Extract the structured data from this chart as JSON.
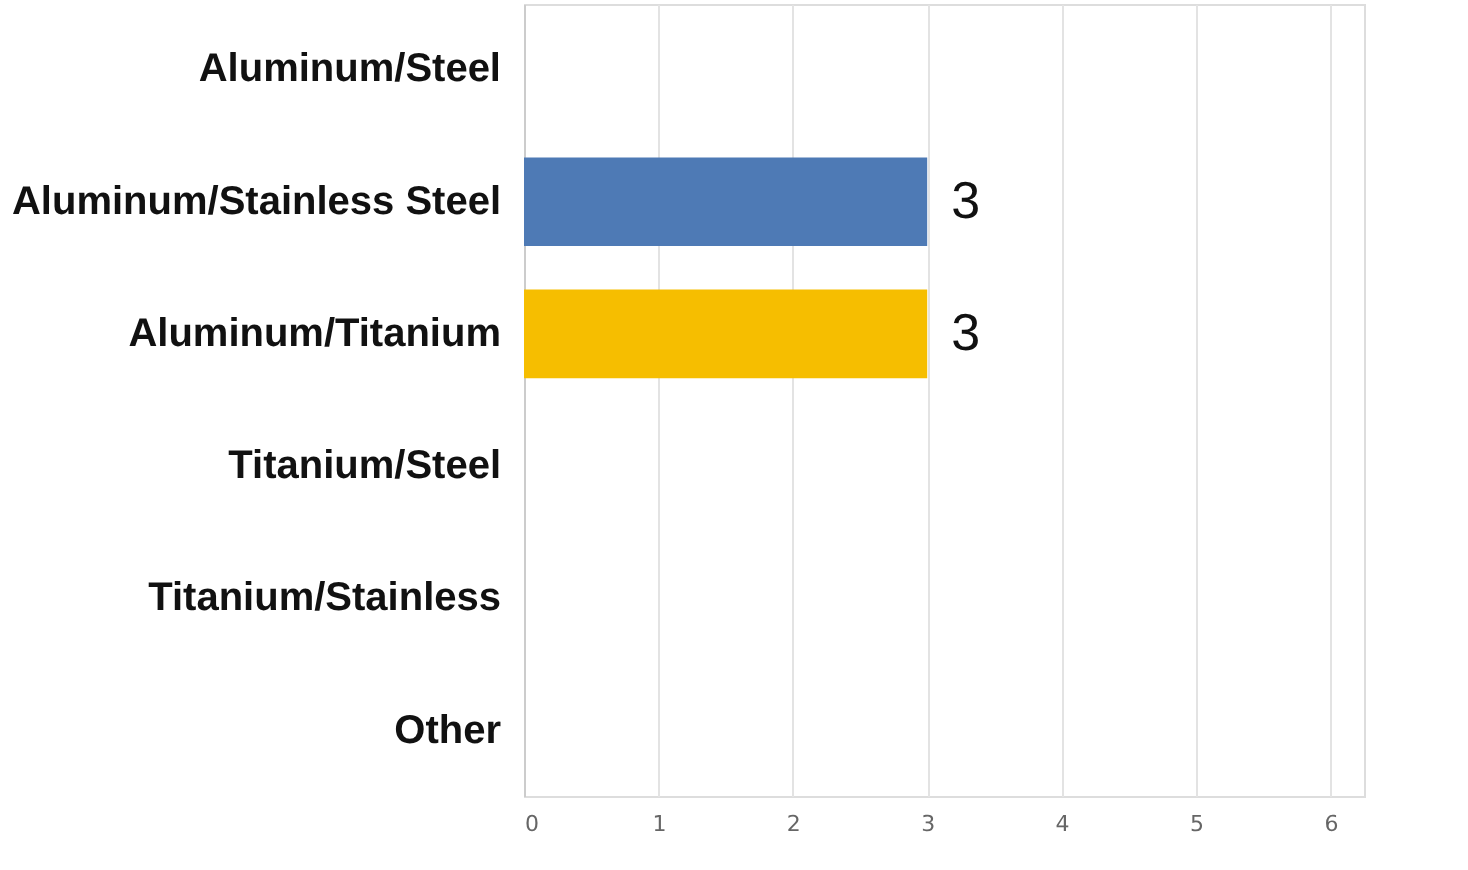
{
  "chart_data": {
    "type": "bar",
    "orientation": "horizontal",
    "categories": [
      "Aluminum/Steel",
      "Aluminum/Stainless Steel",
      "Aluminum/Titanium",
      "Titanium/Steel",
      "Titanium/Stainless",
      "Other"
    ],
    "values": [
      0,
      3,
      3,
      0,
      0,
      0
    ],
    "colors": [
      "#4e7ab5",
      "#4e7ab5",
      "#f6be00",
      "#4e7ab5",
      "#4e7ab5",
      "#4e7ab5"
    ],
    "value_labels": [
      null,
      "3",
      "3",
      null,
      null,
      null
    ],
    "xlim": [
      0,
      6.25
    ],
    "xticks": [
      0,
      1,
      2,
      3,
      4,
      5,
      6
    ],
    "grid": "x"
  }
}
